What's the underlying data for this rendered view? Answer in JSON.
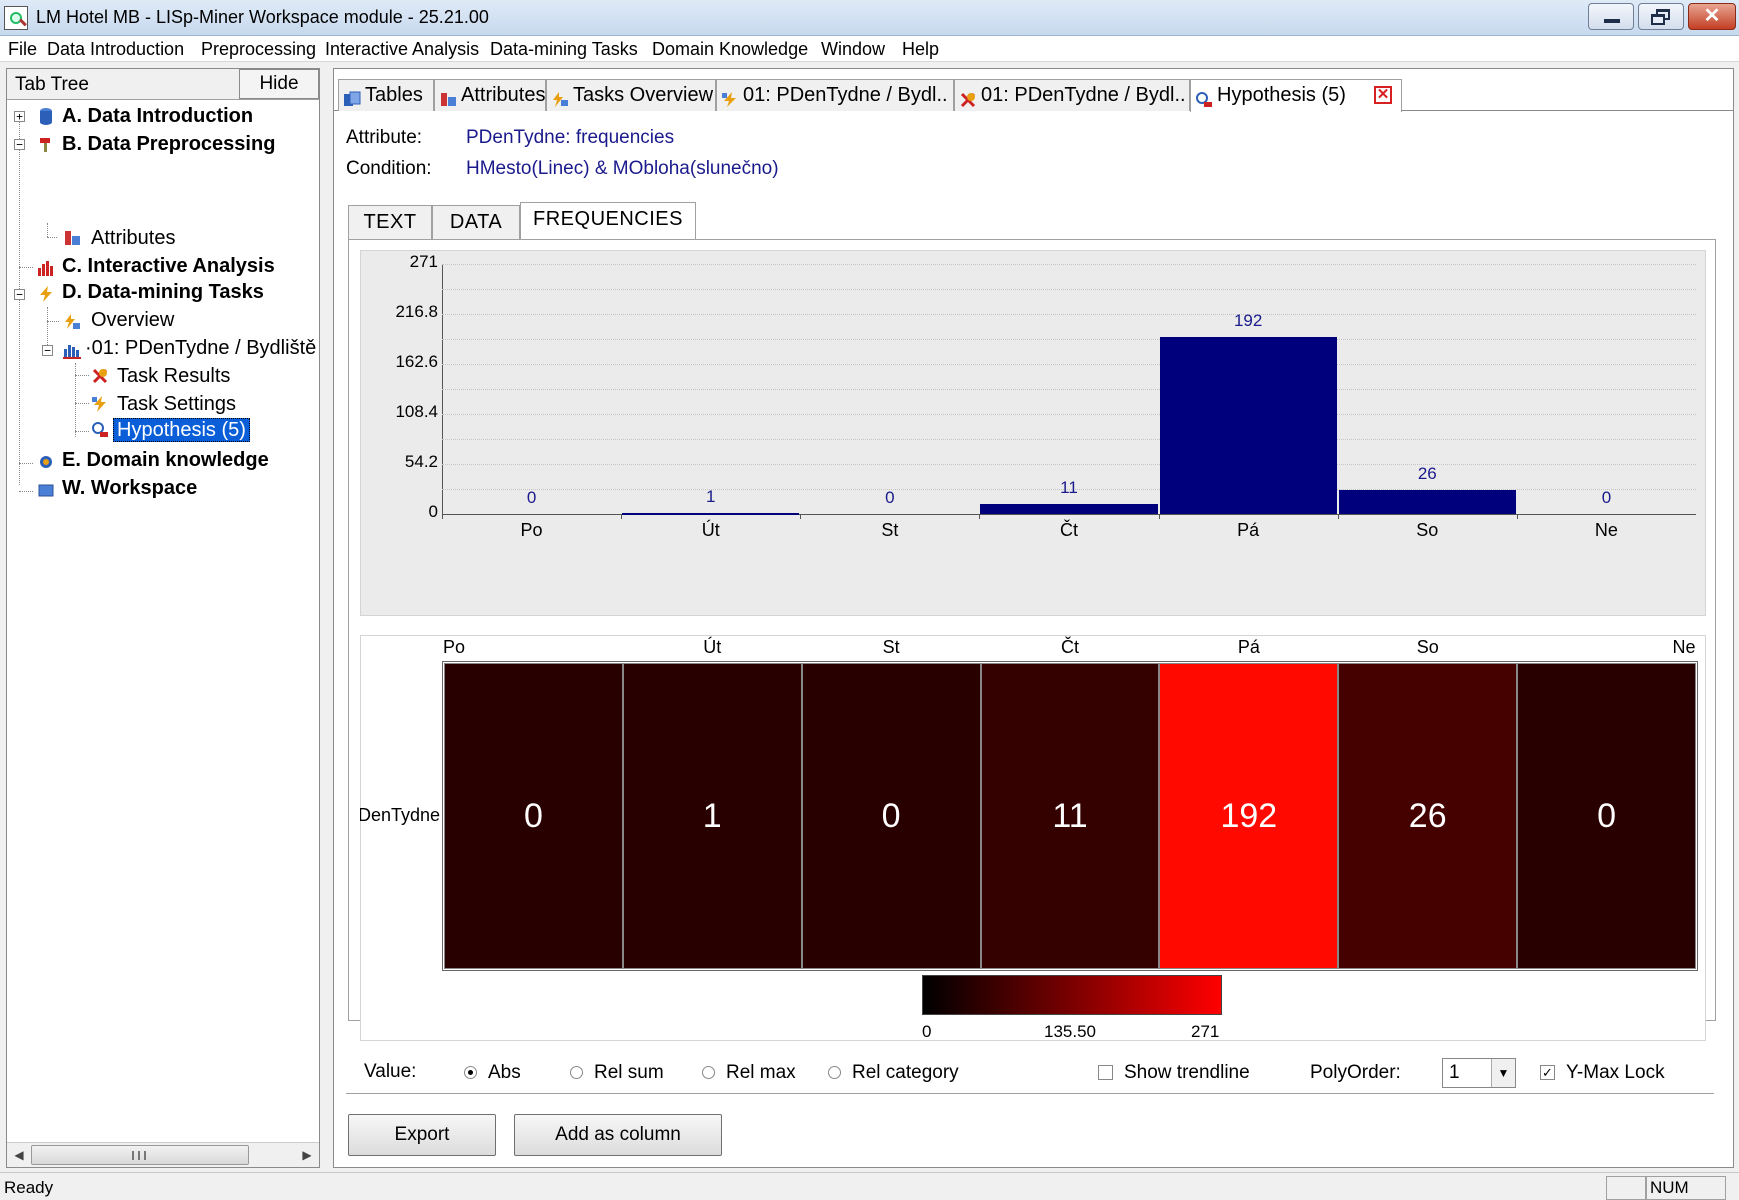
{
  "window": {
    "title": "LM Hotel MB - LISp-Miner Workspace module - 25.21.00"
  },
  "menu": [
    "File",
    "Data Introduction",
    "Preprocessing",
    "Interactive Analysis",
    "Data-mining Tasks",
    "Domain Knowledge",
    "Window",
    "Help"
  ],
  "left_panel": {
    "header": "Tab Tree",
    "hide_label": "Hide",
    "tree": {
      "a": "A. Data Introduction",
      "b": "B. Data Preprocessing",
      "b_attributes": "Attributes",
      "c": "C. Interactive Analysis",
      "d": "D. Data-mining Tasks",
      "d_overview": "Overview",
      "d_task": "01: PDenTydne / Bydliště",
      "d_task_results": "Task Results",
      "d_task_settings": "Task Settings",
      "d_hypothesis": "Hypothesis (5)",
      "e": "E. Domain knowledge",
      "w": "W. Workspace"
    }
  },
  "doc_tabs": [
    "Tables",
    "Attributes",
    "Tasks Overview",
    "01: PDenTydne / Bydl..",
    "01: PDenTydne / Bydl..",
    "Hypothesis (5)"
  ],
  "detail": {
    "attribute_label": "Attribute:",
    "attribute_value": "PDenTydne: frequencies",
    "condition_label": "Condition:",
    "condition_value": "HMesto(Linec) & MObloha(slunečno)"
  },
  "sub_tabs": [
    "TEXT",
    "DATA",
    "FREQUENCIES"
  ],
  "chart_data": {
    "type": "bar",
    "categories": [
      "Po",
      "Út",
      "St",
      "Čt",
      "Pá",
      "So",
      "Ne"
    ],
    "values": [
      0,
      1,
      0,
      11,
      192,
      26,
      0
    ],
    "ylim": [
      0,
      271
    ],
    "yticks": [
      "0",
      "54.2",
      "108.4",
      "162.6",
      "216.8",
      "271"
    ],
    "bar_color": "#00007d",
    "grid": true,
    "heatmap": {
      "row_label": "PDenTydne",
      "row_label_visible": "DenTydne",
      "min": 0,
      "max": 271,
      "colorbar_labels": [
        "0",
        "135.50",
        "271"
      ]
    }
  },
  "options": {
    "value_label": "Value:",
    "radios": [
      "Abs",
      "Rel sum",
      "Rel max",
      "Rel category"
    ],
    "selected": "Abs",
    "show_trendline": "Show trendline",
    "show_trendline_checked": false,
    "polyorder_label": "PolyOrder:",
    "polyorder_value": "1",
    "ymax_lock": "Y-Max Lock",
    "ymax_lock_checked": true
  },
  "buttons": {
    "export": "Export",
    "add_column": "Add as column"
  },
  "status": {
    "text": "Ready",
    "num": "NUM"
  }
}
